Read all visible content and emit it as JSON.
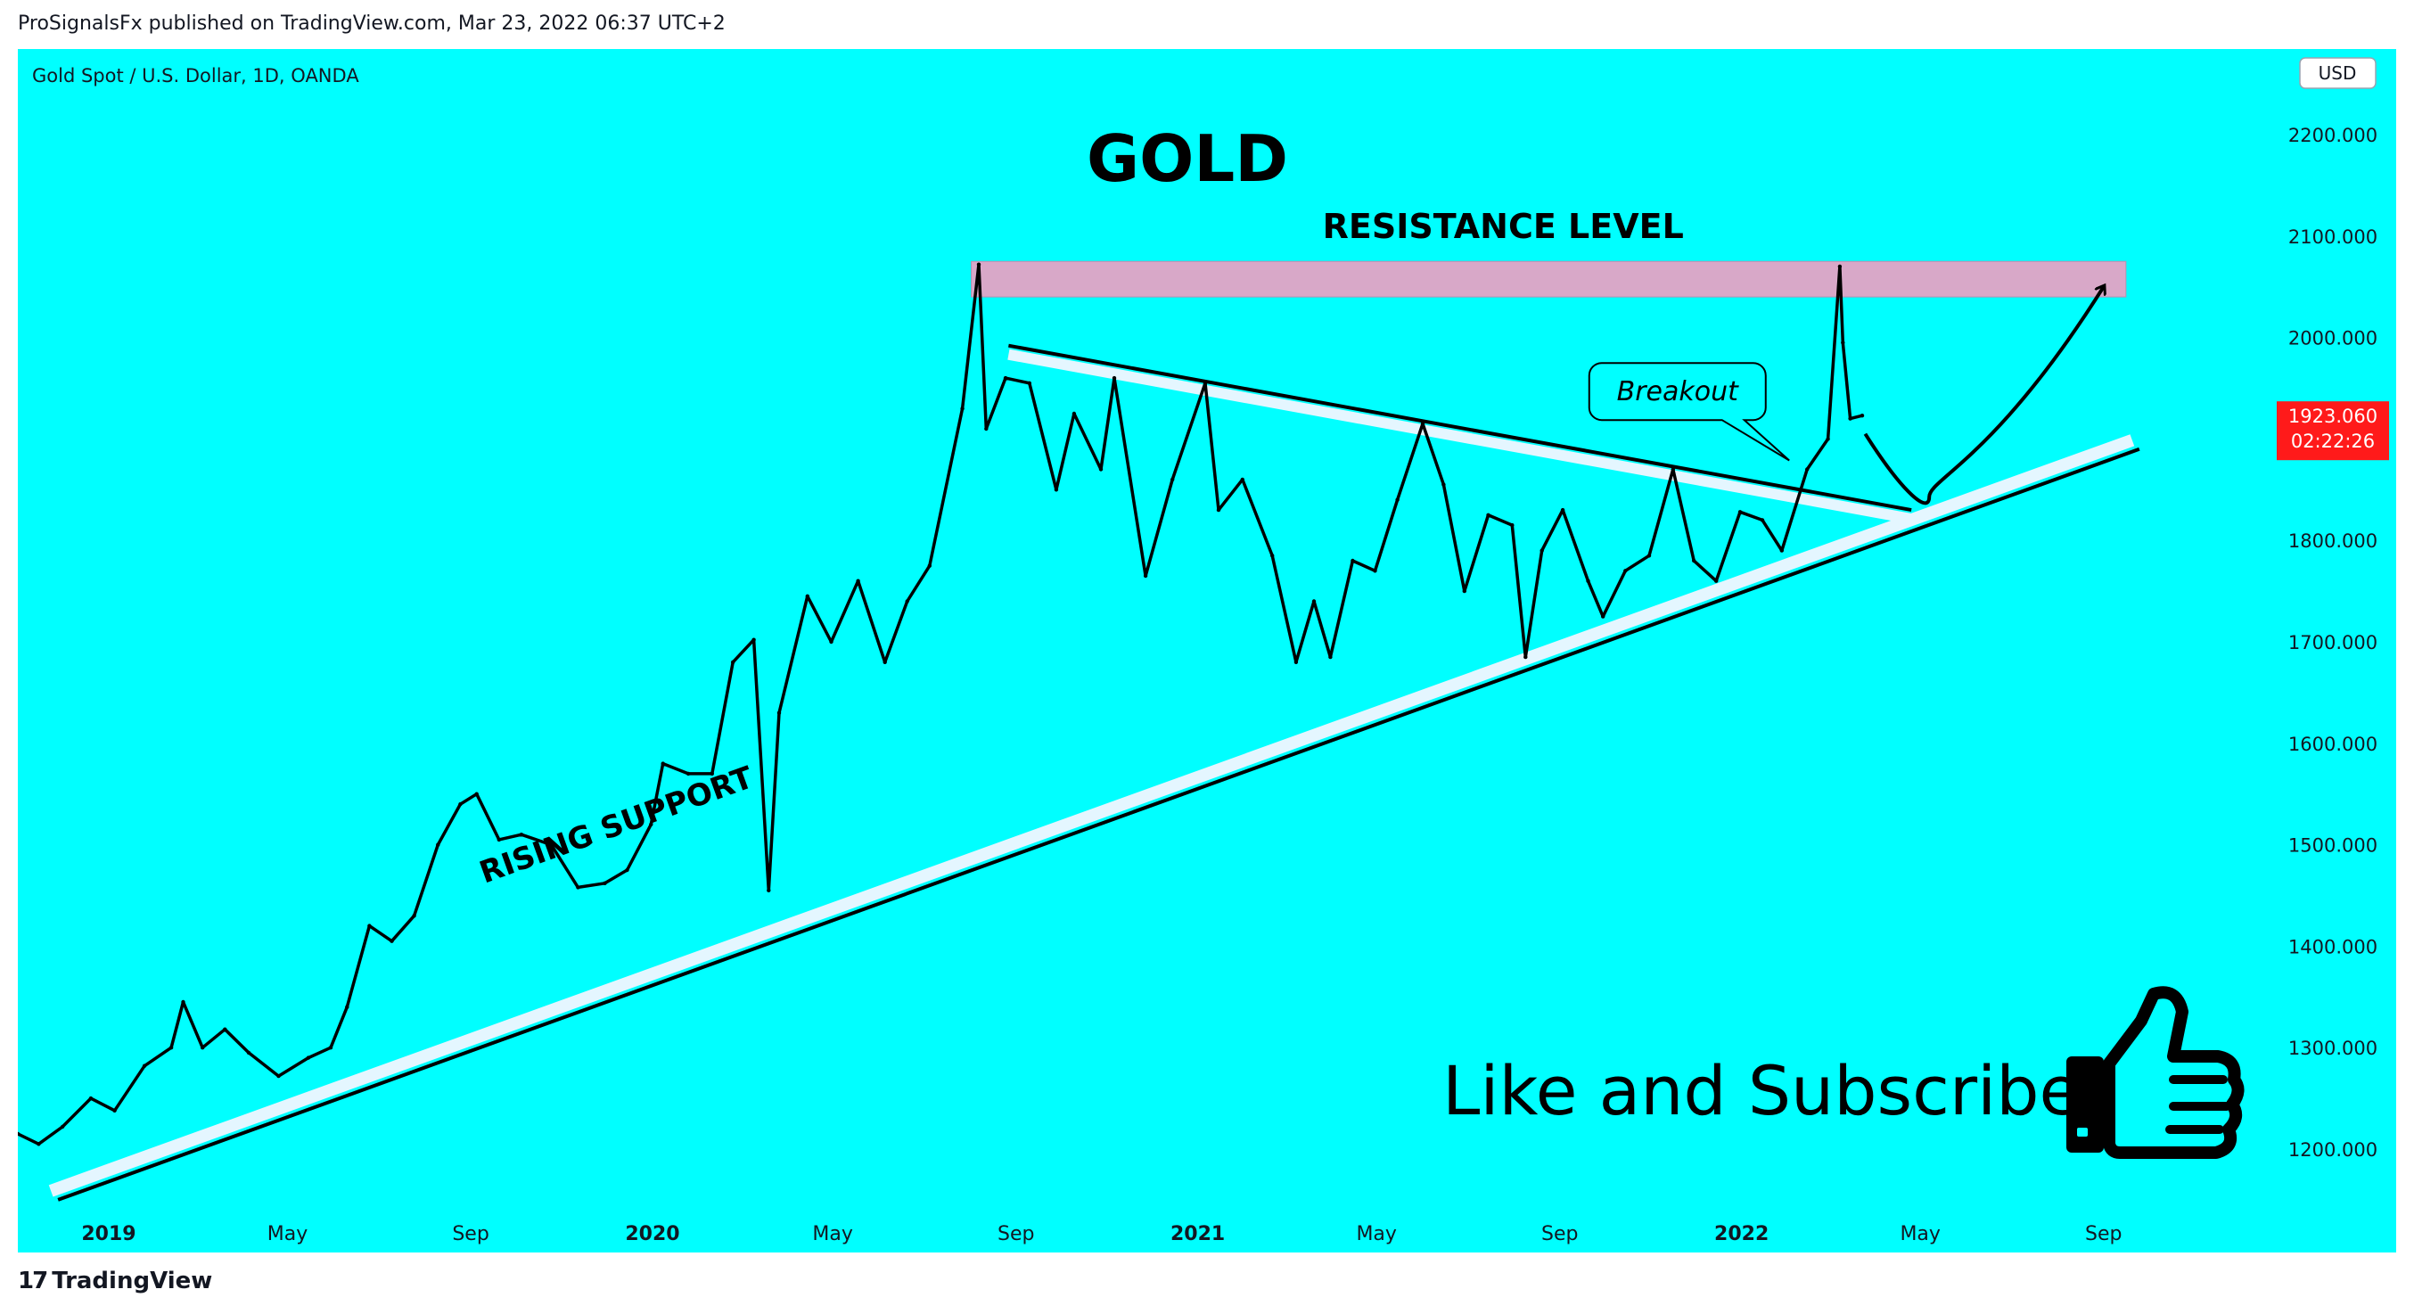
{
  "header": {
    "published_line": "ProSignalsFx published on TradingView.com, Mar 23, 2022 06:37 UTC+2"
  },
  "footer": {
    "brand": "TradingView",
    "brand_icon": "tradingview-logo-icon"
  },
  "colors": {
    "background": "#00ffff",
    "candles": "#000000",
    "resistance_zone": "#d8a8c8",
    "price_tag": "#ff1a1a",
    "channel_highlight": "#e4f6ff"
  },
  "chart_data": {
    "type": "line",
    "symbol_label": "Gold Spot / U.S. Dollar, 1D, OANDA",
    "currency_button": "USD",
    "title": "GOLD",
    "y_ticks": [
      "2200.000",
      "2100.000",
      "2000.000",
      "1900.000",
      "1800.000",
      "1700.000",
      "1600.000",
      "1500.000",
      "1400.000",
      "1300.000",
      "1200.000"
    ],
    "ylim": [
      1125,
      2225
    ],
    "xlim": [
      "2018-11-01",
      "2022-10-25"
    ],
    "x_ticks": [
      {
        "date": "2019-01-01",
        "label": "2019",
        "bold": true
      },
      {
        "date": "2019-05-01",
        "label": "May",
        "bold": false
      },
      {
        "date": "2019-09-01",
        "label": "Sep",
        "bold": false
      },
      {
        "date": "2020-01-01",
        "label": "2020",
        "bold": true
      },
      {
        "date": "2020-05-01",
        "label": "May",
        "bold": false
      },
      {
        "date": "2020-09-01",
        "label": "Sep",
        "bold": false
      },
      {
        "date": "2021-01-01",
        "label": "2021",
        "bold": true
      },
      {
        "date": "2021-05-01",
        "label": "May",
        "bold": false
      },
      {
        "date": "2021-09-01",
        "label": "Sep",
        "bold": false
      },
      {
        "date": "2022-01-01",
        "label": "2022",
        "bold": true
      },
      {
        "date": "2022-05-01",
        "label": "May",
        "bold": false
      },
      {
        "date": "2022-09-01",
        "label": "Sep",
        "bold": false
      }
    ],
    "series": [
      {
        "values": [
          [
            "2018-11-01",
            1215
          ],
          [
            "2018-11-15",
            1205
          ],
          [
            "2018-12-01",
            1222
          ],
          [
            "2018-12-20",
            1250
          ],
          [
            "2019-01-05",
            1238
          ],
          [
            "2019-01-25",
            1282
          ],
          [
            "2019-02-12",
            1300
          ],
          [
            "2019-02-20",
            1345
          ],
          [
            "2019-03-05",
            1300
          ],
          [
            "2019-03-20",
            1318
          ],
          [
            "2019-04-05",
            1295
          ],
          [
            "2019-04-25",
            1272
          ],
          [
            "2019-05-15",
            1290
          ],
          [
            "2019-05-30",
            1300
          ],
          [
            "2019-06-10",
            1340
          ],
          [
            "2019-06-25",
            1420
          ],
          [
            "2019-07-10",
            1405
          ],
          [
            "2019-07-25",
            1430
          ],
          [
            "2019-08-10",
            1500
          ],
          [
            "2019-08-25",
            1540
          ],
          [
            "2019-09-05",
            1550
          ],
          [
            "2019-09-20",
            1505
          ],
          [
            "2019-10-05",
            1510
          ],
          [
            "2019-10-25",
            1500
          ],
          [
            "2019-11-12",
            1458
          ],
          [
            "2019-11-30",
            1462
          ],
          [
            "2019-12-15",
            1475
          ],
          [
            "2019-12-31",
            1520
          ],
          [
            "2020-01-08",
            1580
          ],
          [
            "2020-01-25",
            1570
          ],
          [
            "2020-02-10",
            1570
          ],
          [
            "2020-02-24",
            1680
          ],
          [
            "2020-03-09",
            1702
          ],
          [
            "2020-03-19",
            1455
          ],
          [
            "2020-03-26",
            1630
          ],
          [
            "2020-04-14",
            1745
          ],
          [
            "2020-04-30",
            1700
          ],
          [
            "2020-05-18",
            1760
          ],
          [
            "2020-06-05",
            1680
          ],
          [
            "2020-06-20",
            1740
          ],
          [
            "2020-07-05",
            1775
          ],
          [
            "2020-07-27",
            1930
          ],
          [
            "2020-08-07",
            2072
          ],
          [
            "2020-08-12",
            1910
          ],
          [
            "2020-08-25",
            1960
          ],
          [
            "2020-09-10",
            1955
          ],
          [
            "2020-09-28",
            1850
          ],
          [
            "2020-10-10",
            1925
          ],
          [
            "2020-10-28",
            1870
          ],
          [
            "2020-11-06",
            1960
          ],
          [
            "2020-11-27",
            1765
          ],
          [
            "2020-12-15",
            1860
          ],
          [
            "2021-01-06",
            1955
          ],
          [
            "2021-01-15",
            1830
          ],
          [
            "2021-01-31",
            1860
          ],
          [
            "2021-02-20",
            1785
          ],
          [
            "2021-03-08",
            1680
          ],
          [
            "2021-03-20",
            1740
          ],
          [
            "2021-03-31",
            1685
          ],
          [
            "2021-04-15",
            1780
          ],
          [
            "2021-04-30",
            1770
          ],
          [
            "2021-05-15",
            1840
          ],
          [
            "2021-06-01",
            1915
          ],
          [
            "2021-06-15",
            1855
          ],
          [
            "2021-06-29",
            1750
          ],
          [
            "2021-07-15",
            1825
          ],
          [
            "2021-07-31",
            1815
          ],
          [
            "2021-08-09",
            1685
          ],
          [
            "2021-08-20",
            1790
          ],
          [
            "2021-09-03",
            1830
          ],
          [
            "2021-09-20",
            1760
          ],
          [
            "2021-09-30",
            1725
          ],
          [
            "2021-10-15",
            1770
          ],
          [
            "2021-10-31",
            1785
          ],
          [
            "2021-11-16",
            1870
          ],
          [
            "2021-11-30",
            1780
          ],
          [
            "2021-12-15",
            1760
          ],
          [
            "2021-12-31",
            1828
          ],
          [
            "2022-01-15",
            1820
          ],
          [
            "2022-01-28",
            1790
          ],
          [
            "2022-02-14",
            1870
          ],
          [
            "2022-02-28",
            1900
          ],
          [
            "2022-03-08",
            2070
          ],
          [
            "2022-03-10",
            1995
          ],
          [
            "2022-03-15",
            1920
          ],
          [
            "2022-03-23",
            1923
          ]
        ]
      }
    ],
    "last_price": {
      "value": "1923.060",
      "countdown": "02:22:26"
    },
    "drawings": {
      "resistance_zone": {
        "x0": "2020-08-02",
        "x1": "2022-09-16",
        "y0": 2040,
        "y1": 2075
      },
      "resistance_label": {
        "text": "RESISTANCE LEVEL",
        "x": "2021-07-25",
        "y": 2098
      },
      "falling_trendline": {
        "x0": "2020-08-27",
        "y0": 1992,
        "x1": "2022-04-25",
        "y1": 1830
      },
      "rising_support": {
        "x0": "2018-11-28",
        "y0": 1150,
        "x1": "2022-09-25",
        "y1": 1890
      },
      "rising_support_label": {
        "text": "RISING SUPPORT",
        "x": "2019-12-10",
        "y": 1510
      },
      "breakout_callout": {
        "text": "Breakout",
        "x": "2021-11-16",
        "y": 1945
      },
      "projection": [
        [
          "2022-03-25",
          1905
        ],
        [
          "2022-04-20",
          1845
        ],
        [
          "2022-05-07",
          1843
        ],
        [
          "2022-06-20",
          1880
        ],
        [
          "2022-09-01",
          2050
        ]
      ]
    },
    "promo_text": "Like and Subscribe",
    "promo_icon": "thumbs-up-icon"
  }
}
